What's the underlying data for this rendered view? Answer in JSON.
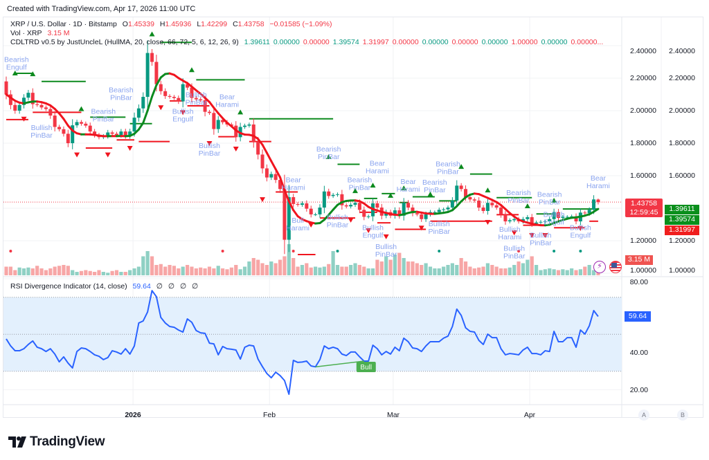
{
  "header": {
    "created": "Created with TradingView.com, Apr 17, 2026 11:00 UTC"
  },
  "legend": {
    "symbol": "XRP / U.S. Dollar · 1D · Bitstamp",
    "o_label": "O",
    "o": "1.45339",
    "h_label": "H",
    "h": "1.45936",
    "l_label": "L",
    "l": "1.42299",
    "c_label": "C",
    "c": "1.43758",
    "change": "−0.01585 (−1.09%)",
    "vol_label": "Vol · XRP",
    "vol": "3.15 M",
    "indicator": "CDLTRD v0.5 by JustUncleL (HullMA, 20, close, 66, 72, 5, 6, 12, 26, 9)",
    "indicator_values": [
      {
        "v": "1.39611",
        "c": "#089981"
      },
      {
        "v": "0.00000",
        "c": "#089981"
      },
      {
        "v": "0.00000",
        "c": "#f23645"
      },
      {
        "v": "1.39574",
        "c": "#089981"
      },
      {
        "v": "1.31997",
        "c": "#f23645"
      },
      {
        "v": "0.00000",
        "c": "#f23645"
      },
      {
        "v": "0.00000",
        "c": "#089981"
      },
      {
        "v": "0.00000",
        "c": "#f23645"
      },
      {
        "v": "0.00000",
        "c": "#089981"
      },
      {
        "v": "1.00000",
        "c": "#f23645"
      },
      {
        "v": "0.00000",
        "c": "#089981"
      },
      {
        "v": "0.00000...",
        "c": "#f23645"
      }
    ],
    "rsi_title": "RSI Divergence Indicator (14, close)",
    "rsi_value": "59.64",
    "rsi_extras": [
      "∅",
      "∅",
      "∅",
      "∅"
    ]
  },
  "price_axis": {
    "ticks": [
      "2.40000",
      "2.20000",
      "2.00000",
      "1.80000",
      "1.60000",
      "1.20000",
      "1.00000"
    ],
    "tick_values": [
      2.4,
      2.2,
      2.0,
      1.8,
      1.6,
      1.2,
      1.0
    ],
    "last_price": "1.43758",
    "countdown": "12:59:45",
    "indicator_badges": [
      {
        "v": "1.39611",
        "c": "#089981"
      },
      {
        "v": "1.39574",
        "c": "#089981"
      },
      {
        "v": "1.31997",
        "c": "#f23645"
      }
    ],
    "volume_badge": "3.15 M"
  },
  "rsi_axis": {
    "ticks": [
      "80.00",
      "40.00",
      "20.00"
    ],
    "tick_values": [
      80,
      40,
      20
    ],
    "badge": "59.64"
  },
  "time_axis": {
    "labels": [
      "2026",
      "Feb",
      "Mar",
      "Apr"
    ],
    "buttons": [
      "A",
      "B"
    ]
  },
  "brand": {
    "logo_text": "TradingView"
  },
  "colors": {
    "up": "#089981",
    "down": "#f23645",
    "vol_up": "#8fd0c4",
    "vol_down": "#f7a6a6",
    "hma_up": "#0c8a1e",
    "hma_down": "#f0141e",
    "pattern_label": "#8aa4ef",
    "rsi": "#2962ff",
    "rsi_band": "#e3f0fd",
    "bull_div": "#4caf50"
  },
  "chart_data": [
    {
      "type": "candlestick",
      "title": "XRP / U.S. Dollar · 1D · Bitstamp",
      "ylim": [
        1.0,
        2.4
      ],
      "last": {
        "open": 1.45339,
        "high": 1.45936,
        "low": 1.42299,
        "close": 1.43758
      },
      "closes": [
        2.1,
        2.035,
        2.0,
        2.035,
        2.08,
        2.11,
        2.04,
        2.035,
        2.02,
        2.01,
        1.97,
        1.9,
        1.886,
        1.858,
        1.8,
        1.91,
        1.93,
        1.92,
        1.908,
        1.872,
        1.85,
        1.837,
        1.844,
        1.866,
        1.858,
        1.85,
        1.872,
        1.844,
        1.872,
        1.957,
        2.014,
        2.085,
        2.355,
        2.3,
        2.163,
        2.12,
        2.09,
        2.085,
        2.078,
        2.057,
        2.163,
        2.142,
        2.078,
        2.07,
        2.064,
        1.993,
        1.986,
        1.887,
        1.943,
        1.929,
        1.915,
        1.908,
        1.837,
        1.9,
        1.908,
        1.915,
        1.809,
        1.73,
        1.645,
        1.589,
        1.61,
        1.574,
        1.518,
        1.206,
        1.468,
        1.426,
        1.421,
        1.43,
        1.397,
        1.362,
        1.362,
        1.404,
        1.503,
        1.475,
        1.482,
        1.486,
        1.418,
        1.411,
        1.421,
        1.433,
        1.39,
        1.347,
        1.35,
        1.43,
        1.404,
        1.354,
        1.376,
        1.354,
        1.387,
        1.354,
        1.433,
        1.404,
        1.369,
        1.362,
        1.333,
        1.362,
        1.376,
        1.376,
        1.39,
        1.393,
        1.404,
        1.447,
        1.539,
        1.518,
        1.468,
        1.454,
        1.447,
        1.404,
        1.383,
        1.433,
        1.418,
        1.404,
        1.362,
        1.319,
        1.326,
        1.333,
        1.319,
        1.333,
        1.345,
        1.305,
        1.312,
        1.316,
        1.319,
        1.333,
        1.376,
        1.34,
        1.347,
        1.347,
        1.35,
        1.319,
        1.373,
        1.369,
        1.39,
        1.454,
        1.43758
      ],
      "volume_millions": [
        5,
        5,
        3,
        4.5,
        4,
        4.5,
        4,
        5.5,
        4,
        3,
        4,
        5,
        5.5,
        6,
        5.5,
        3,
        2,
        2.5,
        3,
        2.5,
        2,
        3,
        2,
        1.5,
        2.5,
        3,
        2,
        2,
        3,
        4,
        5,
        11,
        14,
        11,
        6,
        6.5,
        5,
        6,
        5.5,
        4,
        5,
        6,
        5,
        4,
        4.5,
        4,
        5,
        4,
        5.5,
        4,
        3.5,
        4.5,
        6,
        3.5,
        5,
        8,
        10,
        9,
        7,
        6,
        8,
        7,
        9,
        11,
        18,
        10,
        5,
        6,
        7,
        4.5,
        5,
        4.5,
        5,
        6.5,
        14,
        6,
        5,
        5,
        6,
        7,
        6,
        5,
        4,
        4,
        9,
        8,
        11,
        9,
        12,
        13,
        10,
        8,
        8,
        7,
        6,
        7,
        5,
        4,
        4,
        5,
        6,
        7,
        6,
        10,
        8,
        5,
        4,
        4.5,
        5,
        7,
        6,
        5,
        4,
        4,
        4.5,
        6,
        8,
        7,
        9,
        11,
        6,
        3,
        3.5,
        4,
        3.5,
        3,
        3.5,
        3,
        4,
        3,
        3.5,
        5,
        6,
        3,
        3.15
      ],
      "hull_ma_period": 20,
      "patterns": [
        {
          "bar": 0,
          "price": 2.3,
          "text": "Bearish Engulf"
        },
        {
          "bar": 8,
          "price": 1.88,
          "text": "Bullish PinBar"
        },
        {
          "bar": 22,
          "price": 1.98,
          "text": "Bearish PinBar"
        },
        {
          "bar": 26,
          "price": 2.01,
          "text": "Bearish PinBar"
        },
        {
          "bar": 40,
          "price": 1.98,
          "text": "Bullish Engulf"
        },
        {
          "bar": 43,
          "price": 1.98,
          "text": "Bullish PinBar"
        },
        {
          "bar": 50,
          "price": 2.07,
          "text": "Bear Harami"
        },
        {
          "bar": 46,
          "price": 1.77,
          "text": "Bullish PinBar"
        },
        {
          "bar": 65,
          "price": 1.56,
          "text": "Bear Harami"
        },
        {
          "bar": 66,
          "price": 1.31,
          "text": "Bull Harami"
        },
        {
          "bar": 73,
          "price": 1.75,
          "text": "Bearish PinBar"
        },
        {
          "bar": 75,
          "price": 1.33,
          "text": "Bullish PinBar"
        },
        {
          "bar": 80,
          "price": 1.56,
          "text": "Bearish PinBar"
        },
        {
          "bar": 84,
          "price": 1.56,
          "text": "Bear Harami"
        },
        {
          "bar": 83,
          "price": 1.265,
          "text": "Bullish Engulf"
        },
        {
          "bar": 86,
          "price": 1.2,
          "text": "Bullish PinBar"
        },
        {
          "bar": 91,
          "price": 1.55,
          "text": "Bear Harami"
        },
        {
          "bar": 97,
          "price": 1.545,
          "text": "Bearish PinBar"
        },
        {
          "bar": 100,
          "price": 1.555,
          "text": "Bearish PinBar"
        },
        {
          "bar": 98,
          "price": 1.29,
          "text": "Bullish PinBar"
        },
        {
          "bar": 116,
          "price": 1.48,
          "text": "Bearish PinBar"
        },
        {
          "bar": 123,
          "price": 1.47,
          "text": "Bearish PinBar"
        },
        {
          "bar": 114,
          "price": 1.255,
          "text": "Bullish Harami"
        },
        {
          "bar": 115,
          "price": 1.24,
          "text": "Bullish PinBar"
        },
        {
          "bar": 121,
          "price": 1.22,
          "text": "Bullish PinBar"
        },
        {
          "bar": 124,
          "price": 1.245,
          "text": "Bullish Engulf"
        },
        {
          "bar": 130,
          "price": 1.265,
          "text": "Bullish Engulf"
        },
        {
          "bar": 134,
          "price": 1.57,
          "text": "Bear Harami"
        }
      ],
      "up_markers": [
        {
          "bar": 2,
          "price": 2.23
        },
        {
          "bar": 6,
          "price": 2.225
        },
        {
          "bar": 17,
          "price": 2.01
        },
        {
          "bar": 33,
          "price": 2.47
        },
        {
          "bar": 42,
          "price": 2.25
        },
        {
          "bar": 53,
          "price": 1.99
        },
        {
          "bar": 73,
          "price": 1.715
        },
        {
          "bar": 79,
          "price": 1.506
        },
        {
          "bar": 83,
          "price": 1.54
        },
        {
          "bar": 87,
          "price": 1.477
        },
        {
          "bar": 90,
          "price": 1.523
        },
        {
          "bar": 96,
          "price": 1.485
        },
        {
          "bar": 103,
          "price": 1.655
        },
        {
          "bar": 109,
          "price": 1.51
        },
        {
          "bar": 118,
          "price": 1.413
        },
        {
          "bar": 124,
          "price": 1.447
        }
      ],
      "down_markers": [
        {
          "bar": 4,
          "price": 1.95
        },
        {
          "bar": 16,
          "price": 1.73
        },
        {
          "bar": 23,
          "price": 1.73
        },
        {
          "bar": 28,
          "price": 1.77
        },
        {
          "bar": 35,
          "price": 2.02
        },
        {
          "bar": 40,
          "price": 1.99
        },
        {
          "bar": 46,
          "price": 1.8
        },
        {
          "bar": 52,
          "price": 1.766
        },
        {
          "bar": 58,
          "price": 1.455
        },
        {
          "bar": 69,
          "price": 1.298
        },
        {
          "bar": 78,
          "price": 1.328
        },
        {
          "bar": 82,
          "price": 1.264
        },
        {
          "bar": 86,
          "price": 1.226
        },
        {
          "bar": 94,
          "price": 1.28
        },
        {
          "bar": 109,
          "price": 1.315
        },
        {
          "bar": 115,
          "price": 1.25
        },
        {
          "bar": 119,
          "price": 1.234
        },
        {
          "bar": 122,
          "price": 1.234
        },
        {
          "bar": 130,
          "price": 1.277
        }
      ],
      "resistance_levels": [
        {
          "from": 2,
          "to": 6,
          "price": 2.23
        },
        {
          "from": 8,
          "to": 18,
          "price": 2.18
        },
        {
          "from": 35,
          "to": 42,
          "price": 2.42
        },
        {
          "from": 43,
          "to": 54,
          "price": 2.19
        },
        {
          "from": 19,
          "to": 27,
          "price": 1.96
        },
        {
          "from": 28,
          "to": 33,
          "price": 1.92
        },
        {
          "from": 55,
          "to": 74,
          "price": 1.95
        },
        {
          "from": 75,
          "to": 80,
          "price": 1.67
        },
        {
          "from": 81,
          "to": 84,
          "price": 1.46
        },
        {
          "from": 85,
          "to": 88,
          "price": 1.49
        },
        {
          "from": 89,
          "to": 91,
          "price": 1.435
        },
        {
          "from": 92,
          "to": 97,
          "price": 1.47
        },
        {
          "from": 98,
          "to": 102,
          "price": 1.445
        },
        {
          "from": 105,
          "to": 110,
          "price": 1.61
        },
        {
          "from": 111,
          "to": 119,
          "price": 1.465
        },
        {
          "from": 120,
          "to": 124,
          "price": 1.365
        },
        {
          "from": 126,
          "to": 134,
          "price": 1.395
        }
      ],
      "support_levels": [
        {
          "from": 0,
          "to": 5,
          "price": 1.945
        },
        {
          "from": 6,
          "to": 17,
          "price": 1.99
        },
        {
          "from": 18,
          "to": 24,
          "price": 1.77
        },
        {
          "from": 25,
          "to": 29,
          "price": 1.82
        },
        {
          "from": 30,
          "to": 37,
          "price": 1.81
        },
        {
          "from": 37,
          "to": 40,
          "price": 2.06
        },
        {
          "from": 41,
          "to": 46,
          "price": 2.03
        },
        {
          "from": 48,
          "to": 52,
          "price": 1.84
        },
        {
          "from": 55,
          "to": 60,
          "price": 1.81
        },
        {
          "from": 61,
          "to": 66,
          "price": 1.5
        },
        {
          "from": 66,
          "to": 70,
          "price": 1.115
        },
        {
          "from": 71,
          "to": 79,
          "price": 1.34
        },
        {
          "from": 80,
          "to": 84,
          "price": 1.375
        },
        {
          "from": 84,
          "to": 87,
          "price": 1.31
        },
        {
          "from": 88,
          "to": 95,
          "price": 1.27
        },
        {
          "from": 96,
          "to": 110,
          "price": 1.32
        },
        {
          "from": 111,
          "to": 116,
          "price": 1.36
        },
        {
          "from": 117,
          "to": 121,
          "price": 1.295
        },
        {
          "from": 124,
          "to": 131,
          "price": 1.28
        },
        {
          "from": 132,
          "to": 134,
          "price": 1.32
        }
      ],
      "volume_dots": [
        {
          "bar": 1,
          "c": "#f23645"
        },
        {
          "bar": 49,
          "c": "#f23645"
        },
        {
          "bar": 65,
          "c": "#f23645"
        },
        {
          "bar": 75,
          "c": "#089981"
        },
        {
          "bar": 98,
          "c": "#089981"
        },
        {
          "bar": 116,
          "c": "#f23645"
        },
        {
          "bar": 124,
          "c": "#089981"
        },
        {
          "bar": 130,
          "c": "#089981"
        }
      ]
    },
    {
      "type": "line",
      "title": "RSI Divergence Indicator (14, close)",
      "ylim": [
        12,
        84
      ],
      "bands": {
        "upper": 70,
        "middle": 50,
        "lower": 30
      },
      "values": [
        47.5,
        43.7,
        41.1,
        41.1,
        42.2,
        44.5,
        46.4,
        43,
        42.2,
        40.7,
        42.2,
        39.3,
        35.1,
        37.8,
        34.4,
        31.8,
        40.7,
        42.6,
        42.2,
        40.7,
        38.9,
        38.1,
        36.3,
        37.4,
        41.1,
        40.4,
        39.3,
        42.2,
        39.3,
        43.7,
        56.1,
        57.2,
        62.1,
        73.6,
        70.3,
        59.1,
        56.1,
        54.2,
        53.8,
        52.3,
        51.2,
        58.3,
        56.5,
        52,
        50.8,
        50.5,
        45.2,
        44.8,
        38.9,
        43.4,
        42.2,
        41.9,
        41.5,
        36.6,
        43,
        44.1,
        43.7,
        36.6,
        32.5,
        28.8,
        26.5,
        29.5,
        27.7,
        25,
        17.6,
        35.9,
        34.8,
        35,
        35.5,
        32.9,
        32.4,
        36.3,
        43.7,
        42.2,
        43,
        42.2,
        39.3,
        38.5,
        40.4,
        40.4,
        37.8,
        35.5,
        35.5,
        44.1,
        42.2,
        38.9,
        40.7,
        39.3,
        43,
        41.1,
        47.9,
        46,
        42.6,
        42.2,
        40.7,
        43.7,
        46,
        46,
        46,
        47.9,
        49,
        54.2,
        63.6,
        60.2,
        53.5,
        51.6,
        51.2,
        46.7,
        44.5,
        50.1,
        48.2,
        48.2,
        42.2,
        38.9,
        39.6,
        39.3,
        38.9,
        41.5,
        43,
        39.6,
        39.6,
        38.9,
        41.1,
        40.7,
        51.6,
        46,
        46,
        48.2,
        48.2,
        43,
        52.3,
        50.1,
        54.6,
        62.8,
        59.64
      ],
      "divergence": {
        "label": "Bull",
        "from_bar": 70,
        "from_value": 32.4,
        "to_bar": 81,
        "to_value": 35.5
      }
    }
  ]
}
